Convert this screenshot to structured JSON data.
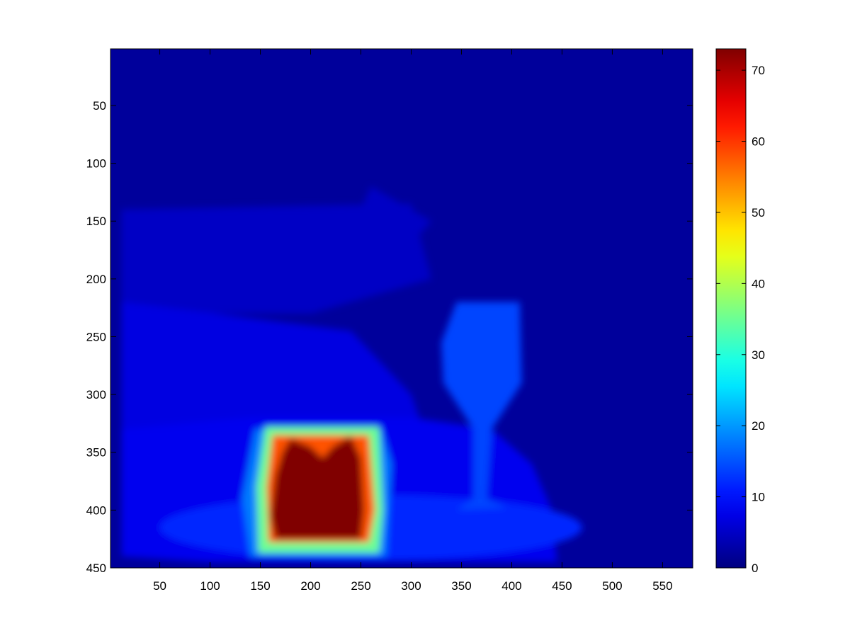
{
  "chart_data": {
    "type": "heatmap",
    "title": "",
    "xlabel": "",
    "ylabel": "",
    "xlim": [
      1,
      580
    ],
    "ylim": [
      450,
      1
    ],
    "y_axis_reversed": true,
    "x_ticks": [
      50,
      100,
      150,
      200,
      250,
      300,
      350,
      400,
      450,
      500,
      550
    ],
    "y_ticks": [
      50,
      100,
      150,
      200,
      250,
      300,
      350,
      400,
      450
    ],
    "colormap": "jet",
    "colorbar": {
      "range": [
        0,
        73
      ],
      "ticks": [
        0,
        10,
        20,
        30,
        40,
        50,
        60,
        70
      ],
      "position": "right"
    },
    "background_value": 2,
    "regions": [
      {
        "label": "",
        "value": 5,
        "shape": "polygon",
        "points": [
          [
            12,
            140
          ],
          [
            300,
            135
          ],
          [
            320,
            200
          ],
          [
            200,
            230
          ],
          [
            90,
            230
          ],
          [
            12,
            225
          ]
        ]
      },
      {
        "label": "",
        "value": 5,
        "shape": "polygon",
        "points": [
          [
            260,
            120
          ],
          [
            320,
            150
          ],
          [
            300,
            170
          ],
          [
            240,
            160
          ]
        ]
      },
      {
        "label": "",
        "value": 7,
        "shape": "polygon",
        "points": [
          [
            12,
            220
          ],
          [
            240,
            245
          ],
          [
            300,
            300
          ],
          [
            310,
            325
          ],
          [
            140,
            330
          ],
          [
            12,
            340
          ]
        ]
      },
      {
        "label": "",
        "value": 8,
        "shape": "polygon",
        "points": [
          [
            12,
            330
          ],
          [
            140,
            320
          ],
          [
            300,
            320
          ],
          [
            380,
            330
          ],
          [
            420,
            360
          ],
          [
            440,
            400
          ],
          [
            445,
            445
          ],
          [
            100,
            445
          ],
          [
            12,
            440
          ]
        ]
      },
      {
        "label": "",
        "value": 12,
        "shape": "ellipse",
        "cx": 260,
        "cy": 415,
        "rx": 210,
        "ry": 28
      },
      {
        "label": "",
        "value": 14,
        "shape": "polygon",
        "points": [
          [
            345,
            220
          ],
          [
            408,
            220
          ],
          [
            410,
            290
          ],
          [
            380,
            330
          ],
          [
            375,
            390
          ],
          [
            395,
            398
          ],
          [
            345,
            400
          ],
          [
            362,
            390
          ],
          [
            362,
            330
          ],
          [
            332,
            290
          ],
          [
            330,
            255
          ]
        ]
      },
      {
        "label": "",
        "value": 18,
        "shape": "polygon",
        "points": [
          [
            145,
            330
          ],
          [
            270,
            330
          ],
          [
            280,
            360
          ],
          [
            275,
            440
          ],
          [
            140,
            440
          ],
          [
            132,
            390
          ]
        ]
      },
      {
        "label": "",
        "value": 35,
        "shape": "polygon",
        "points": [
          [
            155,
            328
          ],
          [
            268,
            328
          ],
          [
            272,
            400
          ],
          [
            268,
            437
          ],
          [
            148,
            437
          ],
          [
            146,
            380
          ]
        ]
      },
      {
        "label": "",
        "value": 58,
        "shape": "polygon",
        "points": [
          [
            162,
            335
          ],
          [
            258,
            335
          ],
          [
            264,
            400
          ],
          [
            258,
            428
          ],
          [
            158,
            428
          ],
          [
            156,
            380
          ]
        ]
      },
      {
        "label": "",
        "value": 73,
        "shape": "polygon",
        "points": [
          [
            180,
            338
          ],
          [
            200,
            345
          ],
          [
            212,
            355
          ],
          [
            222,
            345
          ],
          [
            240,
            336
          ],
          [
            250,
            355
          ],
          [
            253,
            400
          ],
          [
            250,
            425
          ],
          [
            165,
            425
          ],
          [
            160,
            405
          ],
          [
            165,
            370
          ],
          [
            172,
            350
          ]
        ]
      }
    ]
  }
}
